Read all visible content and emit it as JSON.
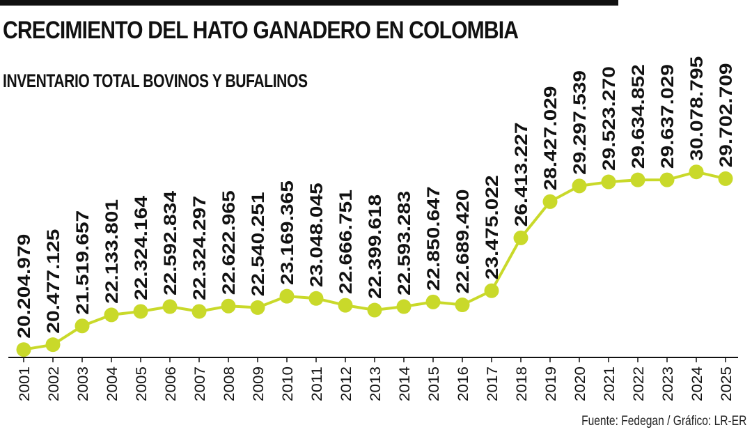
{
  "header": {
    "title": "CRECIMIENTO DEL HATO GANADERO EN COLOMBIA",
    "subtitle": "INVENTARIO TOTAL BOVINOS Y BUFALINOS"
  },
  "footer": {
    "source": "Fuente: Fedegan / Gráfico: LR-ER"
  },
  "colors": {
    "line": "#c9d92a",
    "marker": "#c9d92a",
    "text": "#111111",
    "axis": "#111111"
  },
  "chart_data": {
    "type": "line",
    "title": "CRECIMIENTO DEL HATO GANADERO EN COLOMBIA",
    "subtitle": "INVENTARIO TOTAL BOVINOS Y BUFALINOS",
    "xlabel": "",
    "ylabel": "",
    "grid": false,
    "legend": "none",
    "ylim": [
      20000000,
      31500000
    ],
    "categories": [
      "2001",
      "2002",
      "2003",
      "2004",
      "2005",
      "2006",
      "2007",
      "2008",
      "2009",
      "2010",
      "2011",
      "2012",
      "2013",
      "2014",
      "2015",
      "2016",
      "2017",
      "2018",
      "2019",
      "2020",
      "2021",
      "2022",
      "2023",
      "2024",
      "2025"
    ],
    "values": [
      20204979,
      20477125,
      21519657,
      22133801,
      22324164,
      22592834,
      22324297,
      22622965,
      22540251,
      23169365,
      23048045,
      22666751,
      22399618,
      22593283,
      22850647,
      22689420,
      23475022,
      26413227,
      28427029,
      29297539,
      29523270,
      29634852,
      29637029,
      30078795,
      29702709
    ],
    "labels": [
      "20.204.979",
      "20.477.125",
      "21.519.657",
      "22.133.801",
      "22.324.164",
      "22.592.834",
      "22.324.297",
      "22.622.965",
      "22.540.251",
      "23.169.365",
      "23.048.045",
      "22.666.751",
      "22.399.618",
      "22.593.283",
      "22.850.647",
      "22.689.420",
      "23.475.022",
      "26.413.227",
      "28.427.029",
      "29.297.539",
      "29.523.270",
      "29.634.852",
      "29.637.029",
      "30.078.795",
      "29.702.709"
    ]
  }
}
